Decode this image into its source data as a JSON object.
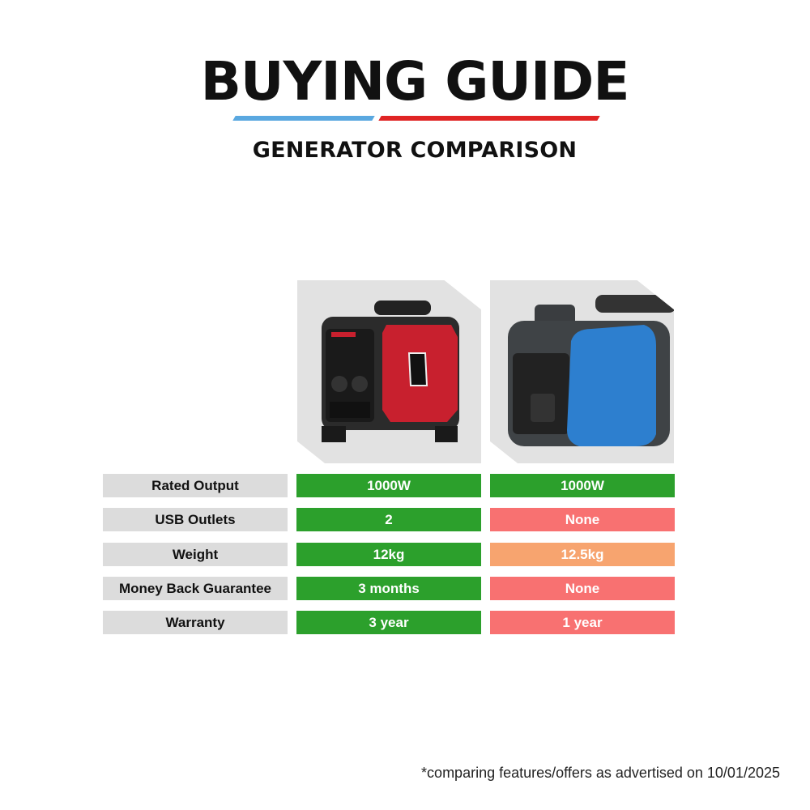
{
  "header": {
    "title": "BUYING GUIDE",
    "subtitle": "GENERATOR COMPARISON"
  },
  "products": [
    {
      "image": "red-black-inverter-generator",
      "logo_text": "GENPOWER"
    },
    {
      "image": "blue-grey-inverter-generator"
    }
  ],
  "colors": {
    "good": "#2ca02c",
    "bad": "#f87171",
    "medium": "#f7a46f",
    "label_bg": "#dcdcdc",
    "accent_blue": "#5aa8e0",
    "accent_red": "#e02424"
  },
  "rows": [
    {
      "label": "Rated Output",
      "p1": "1000W",
      "p1_status": "good",
      "p2": "1000W",
      "p2_status": "good"
    },
    {
      "label": "USB Outlets",
      "p1": "2",
      "p1_status": "good",
      "p2": "None",
      "p2_status": "bad"
    },
    {
      "label": "Weight",
      "p1": "12kg",
      "p1_status": "good",
      "p2": "12.5kg",
      "p2_status": "medium"
    },
    {
      "label": "Money Back Guarantee",
      "p1": "3 months",
      "p1_status": "good",
      "p2": "None",
      "p2_status": "bad"
    },
    {
      "label": "Warranty",
      "p1": "3 year",
      "p1_status": "good",
      "p2": "1 year",
      "p2_status": "bad"
    }
  ],
  "footnote": "*comparing features/offers as advertised on 10/01/2025"
}
